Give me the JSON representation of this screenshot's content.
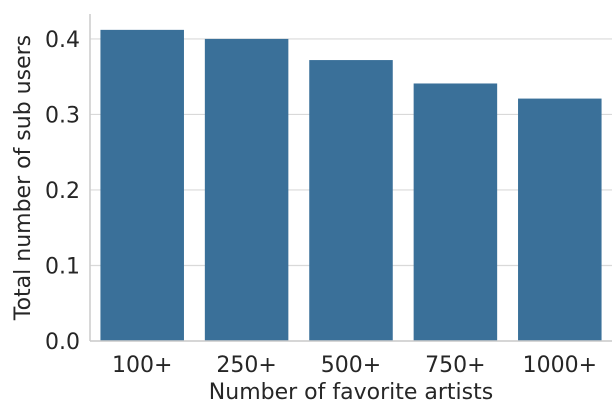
{
  "chart_data": {
    "type": "bar",
    "categories": [
      "100+",
      "250+",
      "500+",
      "750+",
      "1000+"
    ],
    "values": [
      0.412,
      0.4,
      0.372,
      0.341,
      0.321
    ],
    "xlabel": "Number of favorite artists",
    "ylabel": "Total number of sub users",
    "ylim": [
      0,
      0.433
    ],
    "yticks": [
      "0.0",
      "0.1",
      "0.2",
      "0.3",
      "0.4"
    ],
    "grid": "horizontal",
    "colors": {
      "bar": "#3a7099",
      "grid": "#d9d9d9",
      "spine": "#cccccc",
      "text": "#262626"
    }
  }
}
